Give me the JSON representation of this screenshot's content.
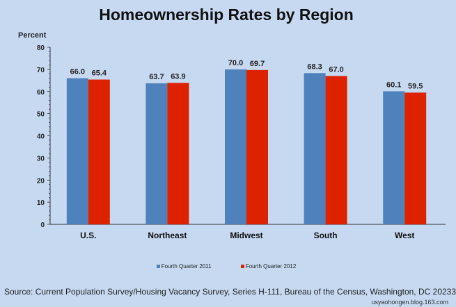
{
  "chart_data": {
    "type": "bar",
    "title": "Homeownership Rates by Region",
    "ylabel": "Percent",
    "xlabel": "",
    "ylim": [
      0,
      80
    ],
    "yticks": [
      0,
      10,
      20,
      30,
      40,
      50,
      60,
      70,
      80
    ],
    "categories": [
      "U.S.",
      "Northeast",
      "Midwest",
      "South",
      "West"
    ],
    "series": [
      {
        "name": "Fourth Quarter 2011",
        "color": "#4f81bd",
        "values": [
          66.0,
          63.7,
          70.0,
          68.3,
          60.1
        ]
      },
      {
        "name": "Fourth Quarter 2012",
        "color": "#dd2200",
        "values": [
          65.4,
          63.9,
          69.7,
          67.0,
          59.5
        ]
      }
    ],
    "legend": "bottom",
    "grid": false
  },
  "source": "Source: Current Population Survey/Housing Vacancy Survey, Series H-111, Bureau of the Census, Washington, DC 20233",
  "watermark": "usyaohongen.blog.163.com"
}
